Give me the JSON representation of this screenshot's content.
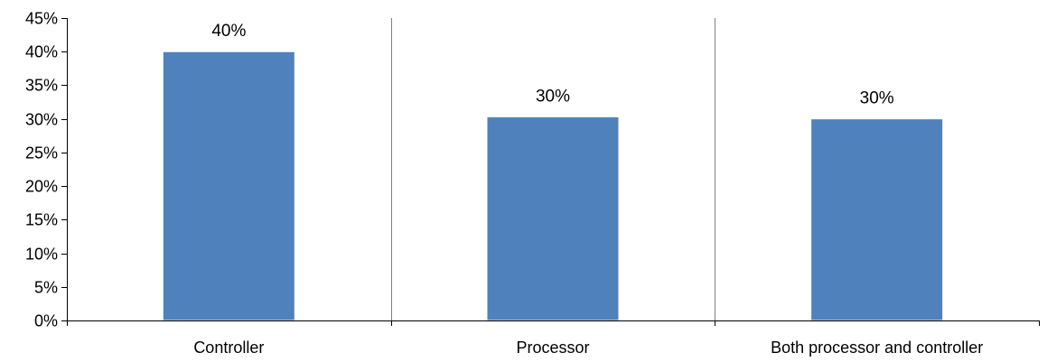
{
  "chart_data": {
    "type": "bar",
    "title": "",
    "xlabel": "",
    "ylabel": "",
    "categories": [
      "Controller",
      "Processor",
      "Both processor and controller"
    ],
    "values": [
      40,
      30.3,
      30
    ],
    "data_labels": [
      "40%",
      "30%",
      "30%"
    ],
    "ylim": [
      0,
      45
    ],
    "y_ticks": [
      0,
      5,
      10,
      15,
      20,
      25,
      30,
      35,
      40,
      45
    ],
    "y_tick_labels": [
      "0%",
      "5%",
      "10%",
      "15%",
      "20%",
      "25%",
      "30%",
      "35%",
      "40%",
      "45%"
    ],
    "grid": false,
    "legend": "none",
    "colors": {
      "bar": "#4f81bd",
      "axis": "#000000",
      "separator": "#808080"
    }
  }
}
